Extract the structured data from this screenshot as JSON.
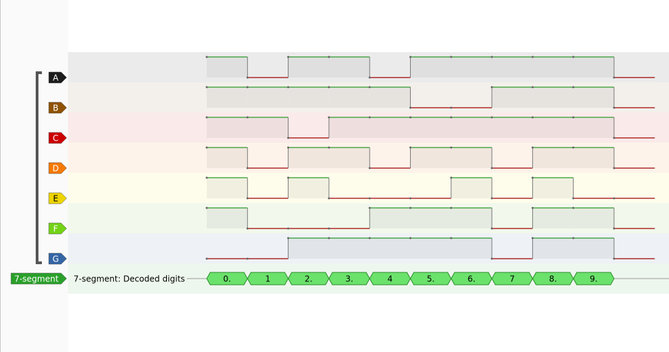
{
  "channels": [
    {
      "label": "A",
      "color": "#1c1c1c",
      "levels": [
        1,
        0,
        1,
        1,
        0,
        1,
        1,
        1,
        1,
        1,
        0
      ]
    },
    {
      "label": "B",
      "color": "#8f5202",
      "levels": [
        1,
        1,
        1,
        1,
        1,
        0,
        0,
        1,
        1,
        1,
        0
      ]
    },
    {
      "label": "C",
      "color": "#cc0000",
      "levels": [
        1,
        1,
        0,
        1,
        1,
        1,
        1,
        1,
        1,
        1,
        0
      ]
    },
    {
      "label": "D",
      "color": "#f57900",
      "levels": [
        1,
        0,
        1,
        1,
        0,
        1,
        1,
        0,
        1,
        1,
        0
      ]
    },
    {
      "label": "E",
      "color": "#edd400",
      "levels": [
        1,
        0,
        1,
        0,
        0,
        0,
        1,
        0,
        1,
        0,
        0
      ]
    },
    {
      "label": "F",
      "color": "#73d216",
      "levels": [
        1,
        0,
        0,
        0,
        1,
        1,
        1,
        0,
        1,
        1,
        0
      ]
    },
    {
      "label": "G",
      "color": "#3465a4",
      "levels": [
        0,
        0,
        1,
        1,
        1,
        1,
        1,
        0,
        1,
        1,
        0
      ]
    }
  ],
  "decoder": {
    "label": "7-segment",
    "row_title": "7-segment: Decoded digits",
    "annotations": [
      "0.",
      "1",
      "2.",
      "3.",
      "4",
      "5.",
      "6.",
      "7",
      "8.",
      "9."
    ]
  }
}
